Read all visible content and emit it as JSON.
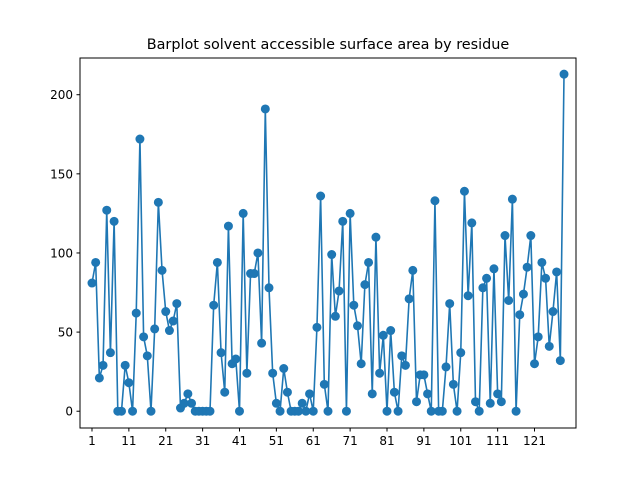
{
  "chart_data": {
    "type": "line",
    "title": "Barplot solvent accessible surface area by residue",
    "xlabel": "",
    "ylabel": "",
    "xlim": [
      -2.25,
      132.25
    ],
    "ylim": [
      -10.6,
      223.2
    ],
    "x_ticks": [
      1,
      11,
      21,
      31,
      41,
      51,
      61,
      71,
      81,
      91,
      101,
      111,
      121
    ],
    "x_tick_labels": [
      "1",
      "11",
      "21",
      "31",
      "41",
      "51",
      "61",
      "71",
      "81",
      "91",
      "101",
      "111",
      "121"
    ],
    "y_ticks": [
      0,
      50,
      100,
      150,
      200
    ],
    "y_tick_labels": [
      "0",
      "50",
      "100",
      "150",
      "200"
    ],
    "grid": false,
    "legend": "none",
    "marker": "circle",
    "color": "#1f77b4",
    "series": [
      {
        "x": [
          1,
          2,
          3,
          4,
          5,
          6,
          7,
          8,
          9,
          10,
          11,
          12,
          13,
          14,
          15,
          16,
          17,
          18,
          19,
          20,
          21,
          22,
          23,
          24,
          25,
          26,
          27,
          28,
          29,
          30,
          31,
          32,
          33,
          34,
          35,
          36,
          37,
          38,
          39,
          40,
          41,
          42,
          43,
          44,
          45,
          46,
          47,
          48,
          49,
          50,
          51,
          52,
          53,
          54,
          55,
          56,
          57,
          58,
          59,
          60,
          61,
          62,
          63,
          64,
          65,
          66,
          67,
          68,
          69,
          70,
          71,
          72,
          73,
          74,
          75,
          76,
          77,
          78,
          79,
          80,
          81,
          82,
          83,
          84,
          85,
          86,
          87,
          88,
          89,
          90,
          91,
          92,
          93,
          94,
          95,
          96,
          97,
          98,
          99,
          100,
          101,
          102,
          103,
          104,
          105,
          106,
          107,
          108,
          109,
          110,
          111,
          112,
          113,
          114,
          115,
          116,
          117,
          118,
          119,
          120,
          121,
          122,
          123,
          124,
          125,
          126,
          127,
          128,
          129
        ],
        "y": [
          81,
          94,
          21,
          29,
          127,
          37,
          120,
          0,
          0,
          29,
          18,
          0,
          62,
          172,
          47,
          35,
          0,
          52,
          132,
          89,
          63,
          51,
          57,
          68,
          2,
          5,
          11,
          5,
          0,
          0,
          0,
          0,
          0,
          67,
          94,
          37,
          12,
          117,
          30,
          33,
          0,
          125,
          24,
          87,
          87,
          100,
          43,
          191,
          78,
          24,
          5,
          0,
          27,
          12,
          0,
          0,
          0,
          5,
          0,
          11,
          0,
          53,
          136,
          17,
          0,
          99,
          60,
          76,
          120,
          0,
          125,
          67,
          54,
          30,
          80,
          94,
          11,
          110,
          24,
          48,
          0,
          51,
          12,
          0,
          35,
          29,
          71,
          89,
          6,
          23,
          23,
          11,
          0,
          133,
          0,
          0,
          28,
          68,
          17,
          0,
          37,
          139,
          73,
          119,
          6,
          0,
          78,
          84,
          5,
          90,
          11,
          6,
          111,
          70,
          134,
          0,
          61,
          74,
          91,
          111,
          30,
          47,
          94,
          84,
          41,
          63,
          88,
          32,
          213
        ]
      }
    ]
  }
}
